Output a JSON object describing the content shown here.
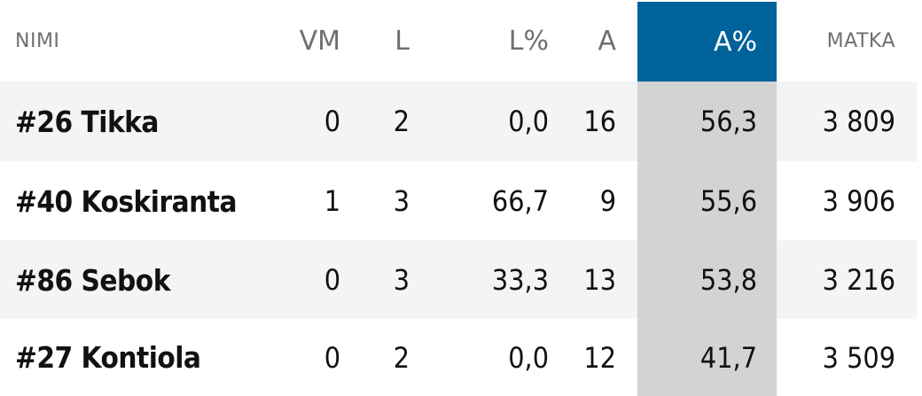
{
  "table": {
    "headers": {
      "name": "NIMI",
      "vm": "VM",
      "l": "L",
      "l_pct": "L%",
      "a": "A",
      "a_pct": "A%",
      "matka": "MATKA"
    },
    "highlighted_column": "a_pct",
    "colors": {
      "highlight_header_bg": "#00629b",
      "highlight_cell_bg": "#d3d3d3",
      "stripe_bg": "#f4f4f4"
    },
    "rows": [
      {
        "name": "#26 Tikka",
        "vm": "0",
        "l": "2",
        "l_pct": "0,0",
        "a": "16",
        "a_pct": "56,3",
        "matka": "3 809"
      },
      {
        "name": "#40 Koskiranta",
        "vm": "1",
        "l": "3",
        "l_pct": "66,7",
        "a": "9",
        "a_pct": "55,6",
        "matka": "3 906"
      },
      {
        "name": "#86 Sebok",
        "vm": "0",
        "l": "3",
        "l_pct": "33,3",
        "a": "13",
        "a_pct": "53,8",
        "matka": "3 216"
      },
      {
        "name": "#27 Kontiola",
        "vm": "0",
        "l": "2",
        "l_pct": "0,0",
        "a": "12",
        "a_pct": "41,7",
        "matka": "3 509"
      }
    ]
  }
}
